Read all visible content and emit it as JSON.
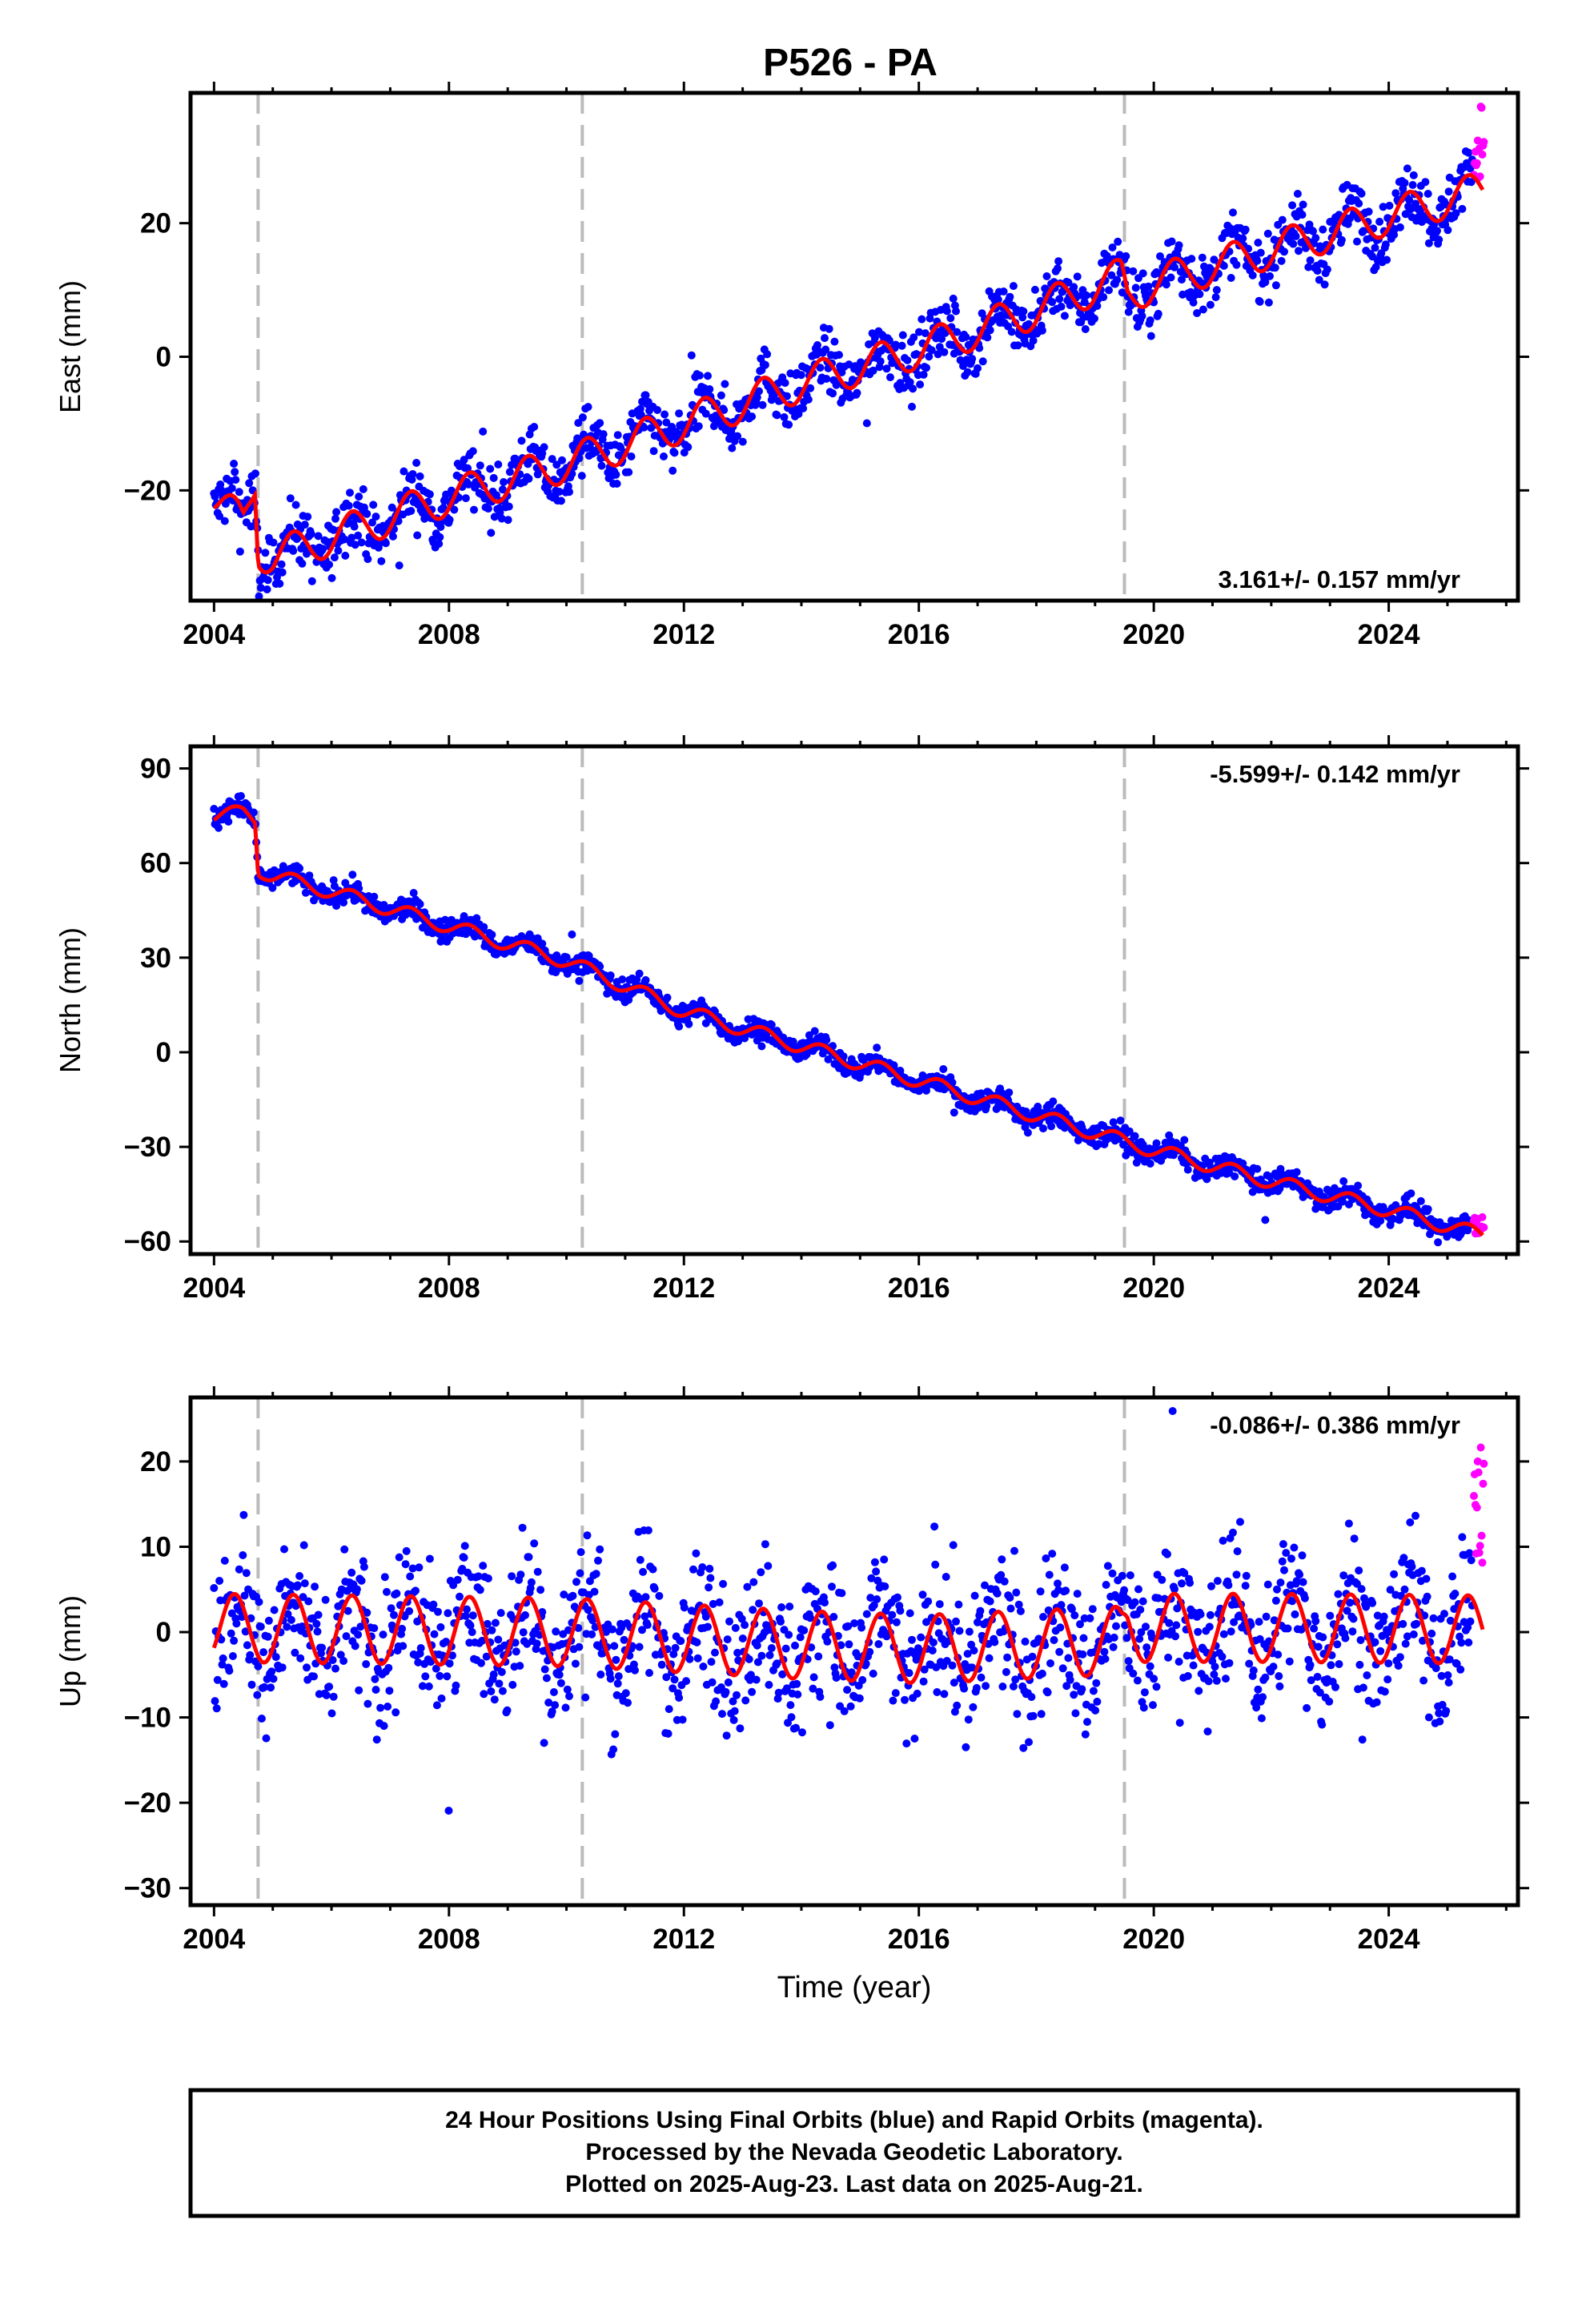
{
  "title": "P526 - PA",
  "footer": {
    "line1": "24 Hour Positions Using Final Orbits (blue) and Rapid Orbits (magenta).",
    "line2": "Processed by the Nevada Geodetic Laboratory.",
    "line3": "Plotted on 2025-Aug-23. Last data on 2025-Aug-21."
  },
  "colors": {
    "final_orbits": "#0000ff",
    "rapid_orbits": "#ff00ff",
    "model_fit": "#ff0000",
    "equipment_change_lines": "#bbbbbb",
    "frame": "#000000"
  },
  "chart_data": [
    {
      "type": "scatter",
      "component": "east",
      "ylabel": "East (mm)",
      "xlabel": "",
      "xlim": [
        2003.6,
        2026.2
      ],
      "ylim": [
        -36.5,
        39.5
      ],
      "xticks": [
        2004,
        2008,
        2012,
        2016,
        2020,
        2024
      ],
      "yticks": [
        -20,
        0,
        20
      ],
      "rate_label": "3.161+/- 0.157 mm/yr",
      "velocity_mm_per_yr": 3.161,
      "equipment_change_epochs": [
        2004.75,
        2010.27,
        2019.5
      ],
      "fit_knots": {
        "t": [
          2004.0,
          2004.5,
          2004.7,
          2004.75,
          2005.0,
          2006.0,
          2008.0,
          2010.0,
          2012.0,
          2014.0,
          2016.0,
          2018.0,
          2019.45,
          2019.55,
          2020.0,
          2022.0,
          2024.0,
          2025.2,
          2025.6
        ],
        "y": [
          -21,
          -25,
          -19,
          -29,
          -30,
          -27,
          -21,
          -16,
          -10,
          -4,
          1,
          7,
          12,
          9,
          11,
          16,
          21,
          24,
          25
        ]
      },
      "seasonal_amplitude_mm": 2.8,
      "scatter_noise_mm": 2.2,
      "rapid_orbits": {
        "t": [
          2025.45,
          2025.62
        ],
        "y": [
          26,
          38
        ]
      }
    },
    {
      "type": "scatter",
      "component": "north",
      "ylabel": "North (mm)",
      "xlabel": "",
      "xlim": [
        2003.6,
        2026.2
      ],
      "ylim": [
        -64,
        97
      ],
      "xticks": [
        2004,
        2008,
        2012,
        2016,
        2020,
        2024
      ],
      "yticks": [
        -60,
        -30,
        0,
        30,
        60,
        90
      ],
      "rate_label": "-5.599+/- 0.142 mm/yr",
      "velocity_mm_per_yr": -5.599,
      "equipment_change_epochs": [
        2004.75,
        2010.27,
        2019.5
      ],
      "fit_knots": {
        "t": [
          2004.0,
          2004.5,
          2004.7,
          2004.75,
          2005.0,
          2006.0,
          2008.0,
          2010.0,
          2012.0,
          2014.0,
          2016.0,
          2018.0,
          2020.0,
          2022.0,
          2024.0,
          2025.6
        ],
        "y": [
          75,
          76,
          74,
          58,
          56,
          51,
          40,
          29,
          13,
          2,
          -9,
          -20,
          -31,
          -41,
          -50,
          -58
        ]
      },
      "seasonal_amplitude_mm": 2.3,
      "scatter_noise_mm": 1.8,
      "rapid_orbits": {
        "t": [
          2025.45,
          2025.62
        ],
        "y": [
          -58,
          -52
        ]
      }
    },
    {
      "type": "scatter",
      "component": "up",
      "ylabel": "Up (mm)",
      "xlabel": "Time (year)",
      "xlim": [
        2003.6,
        2026.2
      ],
      "ylim": [
        -32,
        27.5
      ],
      "xticks": [
        2004,
        2008,
        2012,
        2016,
        2020,
        2024
      ],
      "yticks": [
        -30,
        -20,
        -10,
        0,
        10,
        20
      ],
      "rate_label": "-0.086+/- 0.386 mm/yr",
      "velocity_mm_per_yr": -0.086,
      "equipment_change_epochs": [
        2004.75,
        2010.27,
        2019.5
      ],
      "fit_knots": {
        "t": [
          2004.0,
          2010.0,
          2014.0,
          2016.0,
          2019.45,
          2019.55,
          2022.0,
          2025.6
        ],
        "y": [
          0.5,
          0,
          -1.5,
          -2,
          -1,
          0.5,
          0.5,
          0.3
        ]
      },
      "seasonal_amplitude_mm": 4.0,
      "scatter_noise_mm": 4.2,
      "rapid_orbits": {
        "t": [
          2025.45,
          2025.62
        ],
        "y": [
          8,
          22
        ]
      }
    }
  ]
}
